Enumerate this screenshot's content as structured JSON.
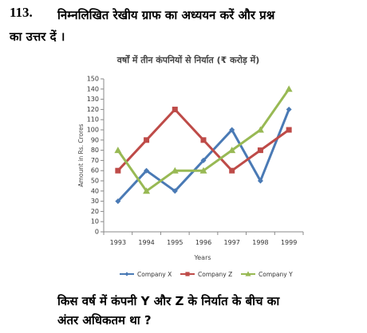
{
  "question": {
    "number": "113.",
    "line1": "निम्नलिखित रेखीय ग्राफ का अध्ययन करें और प्रश्न",
    "line2": "का उत्तर दें ।",
    "ask_line1": "किस वर्ष में कंपनी Y और Z के निर्यात के बीच का",
    "ask_line2": "अंतर अधिकतम था ?"
  },
  "chart_data": {
    "type": "line",
    "title": "वर्षों में तीन कंपनियों से निर्यात (₹ करोड़ में)",
    "xlabel": "Years",
    "ylabel": "Amount in Rs. Crores",
    "categories": [
      "1993",
      "1994",
      "1995",
      "1996",
      "1997",
      "1998",
      "1999"
    ],
    "ylim": [
      0,
      150
    ],
    "yticks": [
      0,
      10,
      20,
      30,
      40,
      50,
      60,
      70,
      80,
      90,
      100,
      110,
      120,
      130,
      140,
      150
    ],
    "grid": false,
    "legend_position": "bottom",
    "series": [
      {
        "name": "Company X",
        "marker": "diamond",
        "color": "#4a7ab5",
        "values": [
          30,
          60,
          40,
          70,
          100,
          50,
          120
        ]
      },
      {
        "name": "Company Z",
        "marker": "square",
        "color": "#be4b48",
        "values": [
          60,
          90,
          120,
          90,
          60,
          80,
          100
        ]
      },
      {
        "name": "Company Y",
        "marker": "triangle",
        "color": "#98b954",
        "values": [
          80,
          40,
          60,
          60,
          80,
          100,
          140
        ]
      }
    ]
  }
}
